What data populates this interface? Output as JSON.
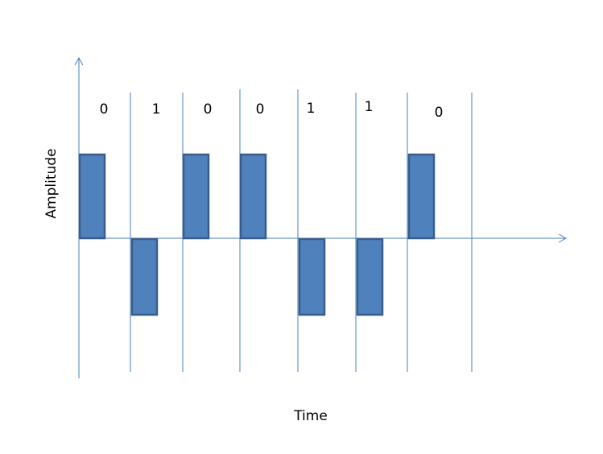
{
  "diagram": {
    "bits": [
      "0",
      "1",
      "0",
      "0",
      "1",
      "1",
      "0"
    ],
    "polarity": {
      "0": "positive",
      "1": "negative"
    },
    "xlabel": "Time",
    "ylabel": "Amplitude",
    "colors": {
      "axis": "#4a7ebb",
      "bar_fill": "#4f81bd",
      "bar_stroke": "#385d8a"
    }
  }
}
